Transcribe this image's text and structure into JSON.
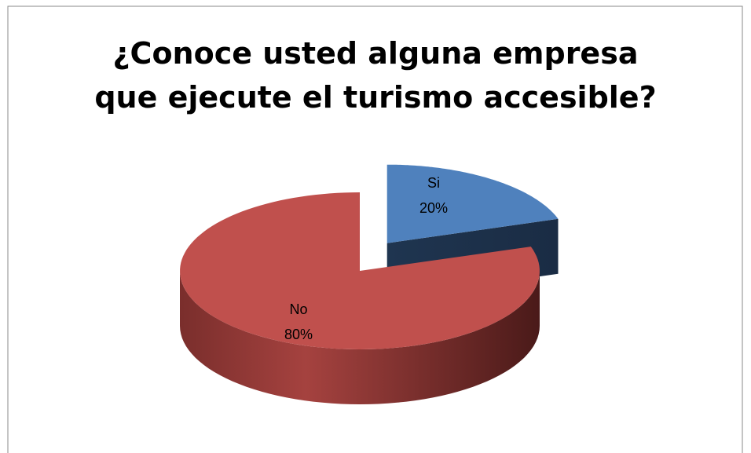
{
  "chart_data": {
    "type": "pie",
    "title": "¿Conoce usted alguna empresa que ejecute el turismo accesible?",
    "categories": [
      "Si",
      "No"
    ],
    "values": [
      20,
      80
    ],
    "value_labels": [
      "20%",
      "80%"
    ],
    "colors": [
      "#4f81bd",
      "#c0504d"
    ]
  }
}
